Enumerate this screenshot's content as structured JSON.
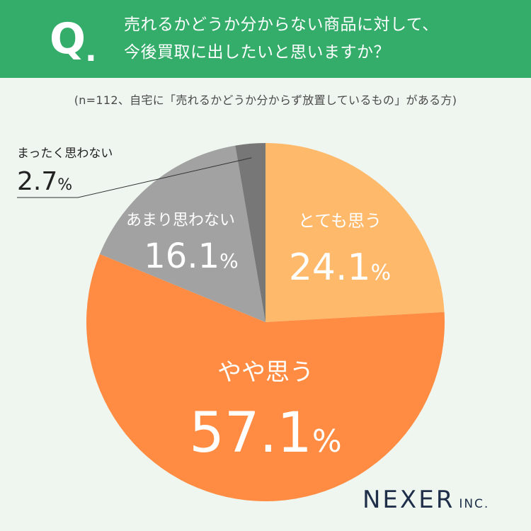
{
  "header": {
    "q_letter": "Q",
    "q_dot": ".",
    "question_line1": "売れるかどうか分からない商品に対して、",
    "question_line2": "今後買取に出したいと思いますか？"
  },
  "note": "(n=112、自宅に「売れるかどうか分からず放置しているもの」がある方)",
  "logo": {
    "main": "NEXER",
    "sub": "INC."
  },
  "colors": {
    "header_bg": "#34ad6b",
    "background": "#eef6ef",
    "totemo": "#ffb96b",
    "yaya": "#ff8c42",
    "amari": "#a2a2a2",
    "mattaku": "#777777",
    "logo": "#1f2f4a"
  },
  "chart_data": {
    "type": "pie",
    "title": "売れるかどうか分からない商品に対して、今後買取に出したいと思いますか？",
    "unit": "%",
    "slices": [
      {
        "label": "とても思う",
        "value": 24.1,
        "display": "24.1",
        "color": "#ffb96b"
      },
      {
        "label": "やや思う",
        "value": 57.1,
        "display": "57.1",
        "color": "#ff8c42"
      },
      {
        "label": "あまり思わない",
        "value": 16.1,
        "display": "16.1",
        "color": "#a2a2a2"
      },
      {
        "label": "まったく思わない",
        "value": 2.7,
        "display": "2.7",
        "color": "#777777"
      }
    ]
  }
}
